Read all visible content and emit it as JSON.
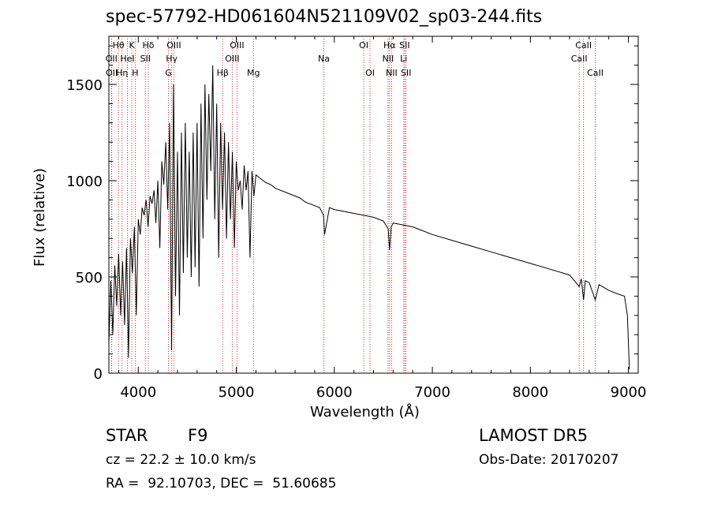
{
  "chart_data": {
    "type": "line",
    "title": "spec-57792-HD061604N521109V02_sp03-244.fits",
    "xlabel": "Wavelength (Å)",
    "ylabel": "Flux (relative)",
    "xlim": [
      3700,
      9100
    ],
    "ylim": [
      0,
      1750
    ],
    "x_ticks": [
      4000,
      5000,
      6000,
      7000,
      8000,
      9000
    ],
    "y_ticks": [
      0,
      500,
      1000,
      1500
    ],
    "x_tick_labels": [
      "4000",
      "5000",
      "6000",
      "7000",
      "8000",
      "9000"
    ],
    "y_tick_labels": [
      "0",
      "500",
      "1000",
      "1500"
    ],
    "grid": false,
    "line_color": "#000000",
    "marker_color": "#cc3333",
    "series": [
      {
        "x": [
          3700,
          3720,
          3740,
          3760,
          3780,
          3800,
          3820,
          3840,
          3860,
          3880,
          3900,
          3920,
          3940,
          3960,
          3980,
          4000,
          4020,
          4040,
          4060,
          4080,
          4100,
          4120,
          4140,
          4160,
          4180,
          4200,
          4220,
          4240,
          4260,
          4280,
          4300,
          4320,
          4340,
          4360,
          4380,
          4400,
          4420,
          4440,
          4460,
          4480,
          4500,
          4520,
          4540,
          4560,
          4580,
          4600,
          4620,
          4640,
          4660,
          4680,
          4700,
          4720,
          4740,
          4760,
          4780,
          4800,
          4820,
          4840,
          4860,
          4880,
          4900,
          4920,
          4940,
          4960,
          4980,
          5000,
          5020,
          5040,
          5060,
          5080,
          5100,
          5120,
          5140,
          5160,
          5180,
          5200,
          5250,
          5300,
          5350,
          5400,
          5450,
          5500,
          5550,
          5600,
          5650,
          5700,
          5750,
          5800,
          5850,
          5890,
          5900,
          5950,
          6000,
          6100,
          6200,
          6300,
          6400,
          6500,
          6550,
          6563,
          6580,
          6600,
          6700,
          6800,
          6900,
          7000,
          7200,
          7400,
          7600,
          7800,
          8000,
          8200,
          8400,
          8498,
          8520,
          8542,
          8560,
          8600,
          8662,
          8700,
          8800,
          8900,
          8960,
          8990,
          9010
        ],
        "y": [
          150,
          480,
          200,
          560,
          350,
          620,
          300,
          580,
          250,
          650,
          80,
          700,
          520,
          760,
          300,
          800,
          720,
          860,
          820,
          900,
          760,
          920,
          880,
          950,
          780,
          1000,
          650,
          1100,
          980,
          1200,
          850,
          1300,
          120,
          1500,
          400,
          1150,
          300,
          1250,
          520,
          1300,
          600,
          1150,
          500,
          1250,
          550,
          1300,
          450,
          1400,
          700,
          1500,
          900,
          1450,
          1050,
          1600,
          800,
          1400,
          600,
          1300,
          850,
          1250,
          700,
          1200,
          800,
          1150,
          650,
          1100,
          950,
          1000,
          850,
          1080,
          950,
          1050,
          600,
          1050,
          920,
          1030,
          1010,
          990,
          980,
          960,
          950,
          940,
          930,
          920,
          910,
          890,
          880,
          870,
          860,
          820,
          720,
          860,
          850,
          840,
          830,
          820,
          810,
          790,
          750,
          640,
          760,
          780,
          770,
          760,
          740,
          720,
          690,
          660,
          630,
          600,
          570,
          540,
          510,
          450,
          490,
          380,
          480,
          470,
          380,
          460,
          430,
          410,
          400,
          300,
          20
        ]
      }
    ],
    "annotations": [
      {
        "label": "Hθ",
        "x": 3798,
        "row": 1
      },
      {
        "label": "K",
        "x": 3934,
        "row": 1
      },
      {
        "label": "Hδ",
        "x": 4102,
        "row": 1
      },
      {
        "label": "OIII",
        "x": 4363,
        "row": 1
      },
      {
        "label": "OIII",
        "x": 5007,
        "row": 1
      },
      {
        "label": "OI",
        "x": 6300,
        "row": 1
      },
      {
        "label": "Hα",
        "x": 6563,
        "row": 1
      },
      {
        "label": "SII",
        "x": 6717,
        "row": 1
      },
      {
        "label": "CaII",
        "x": 8542,
        "row": 1
      },
      {
        "label": "OII",
        "x": 3727,
        "row": 2
      },
      {
        "label": "HeI",
        "x": 3889,
        "row": 2
      },
      {
        "label": "SII",
        "x": 4072,
        "row": 2
      },
      {
        "label": "Hγ",
        "x": 4341,
        "row": 2
      },
      {
        "label": "OIII",
        "x": 4959,
        "row": 2
      },
      {
        "label": "Na",
        "x": 5893,
        "row": 2
      },
      {
        "label": "NII",
        "x": 6548,
        "row": 2
      },
      {
        "label": "Li",
        "x": 6708,
        "row": 2
      },
      {
        "label": "CaII",
        "x": 8498,
        "row": 2
      },
      {
        "label": "OII",
        "x": 3729,
        "row": 3
      },
      {
        "label": "Hη",
        "x": 3835,
        "row": 3
      },
      {
        "label": "H",
        "x": 3969,
        "row": 3
      },
      {
        "label": "G",
        "x": 4308,
        "row": 3
      },
      {
        "label": "Hβ",
        "x": 4861,
        "row": 3
      },
      {
        "label": "Mg",
        "x": 5175,
        "row": 3
      },
      {
        "label": "OI",
        "x": 6364,
        "row": 3
      },
      {
        "label": "NII",
        "x": 6584,
        "row": 3
      },
      {
        "label": "SII",
        "x": 6731,
        "row": 3
      },
      {
        "label": "CaII",
        "x": 8662,
        "row": 3
      }
    ]
  },
  "info": {
    "object_type": "STAR",
    "subclass": "F9",
    "survey": "LAMOST DR5",
    "cz": "cz = 22.2 ± 10.0 km/s",
    "obs_date": "Obs-Date: 20170207",
    "coords": "RA =  92.10703, DEC =  51.60685"
  }
}
